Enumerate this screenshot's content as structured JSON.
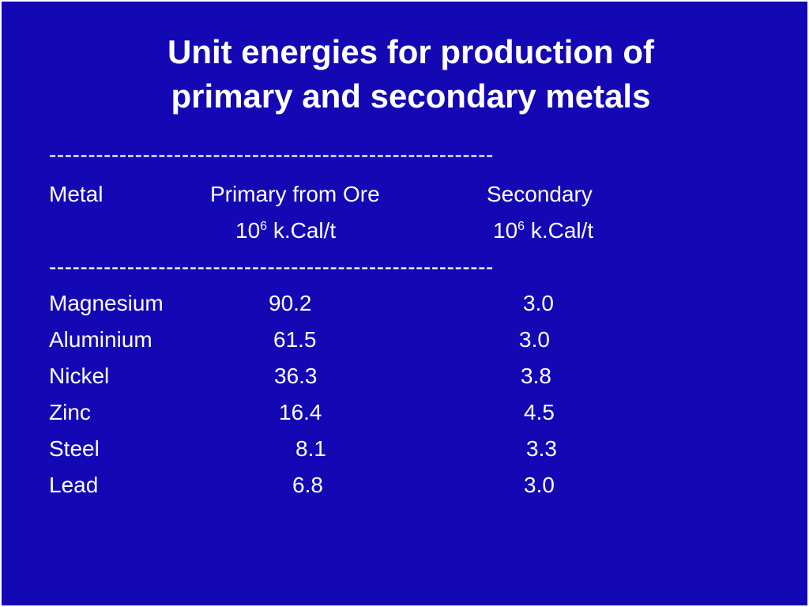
{
  "slide": {
    "title_line1": "Unit energies for production of",
    "title_line2": "primary and secondary metals",
    "rule": "---------------------------------------------------------",
    "header": {
      "metal": "Metal",
      "primary": "Primary from Ore",
      "secondary": "Secondary",
      "unit_base": "10",
      "unit_exp": "6",
      "unit_suffix": " k.Cal/t"
    },
    "rows": [
      {
        "metal": "Magnesium",
        "primary": "90.2",
        "secondary": "3.0"
      },
      {
        "metal": "Aluminium",
        "primary": "61.5",
        "secondary": "3.0"
      },
      {
        "metal": "Nickel",
        "primary": "36.3",
        "secondary": "3.8"
      },
      {
        "metal": "Zinc",
        "primary": "16.4",
        "secondary": "4.5"
      },
      {
        "metal": "Steel",
        "primary": "8.1",
        "secondary": "3.3"
      },
      {
        "metal": "Lead",
        "primary": "6.8",
        "secondary": "3.0"
      }
    ]
  }
}
